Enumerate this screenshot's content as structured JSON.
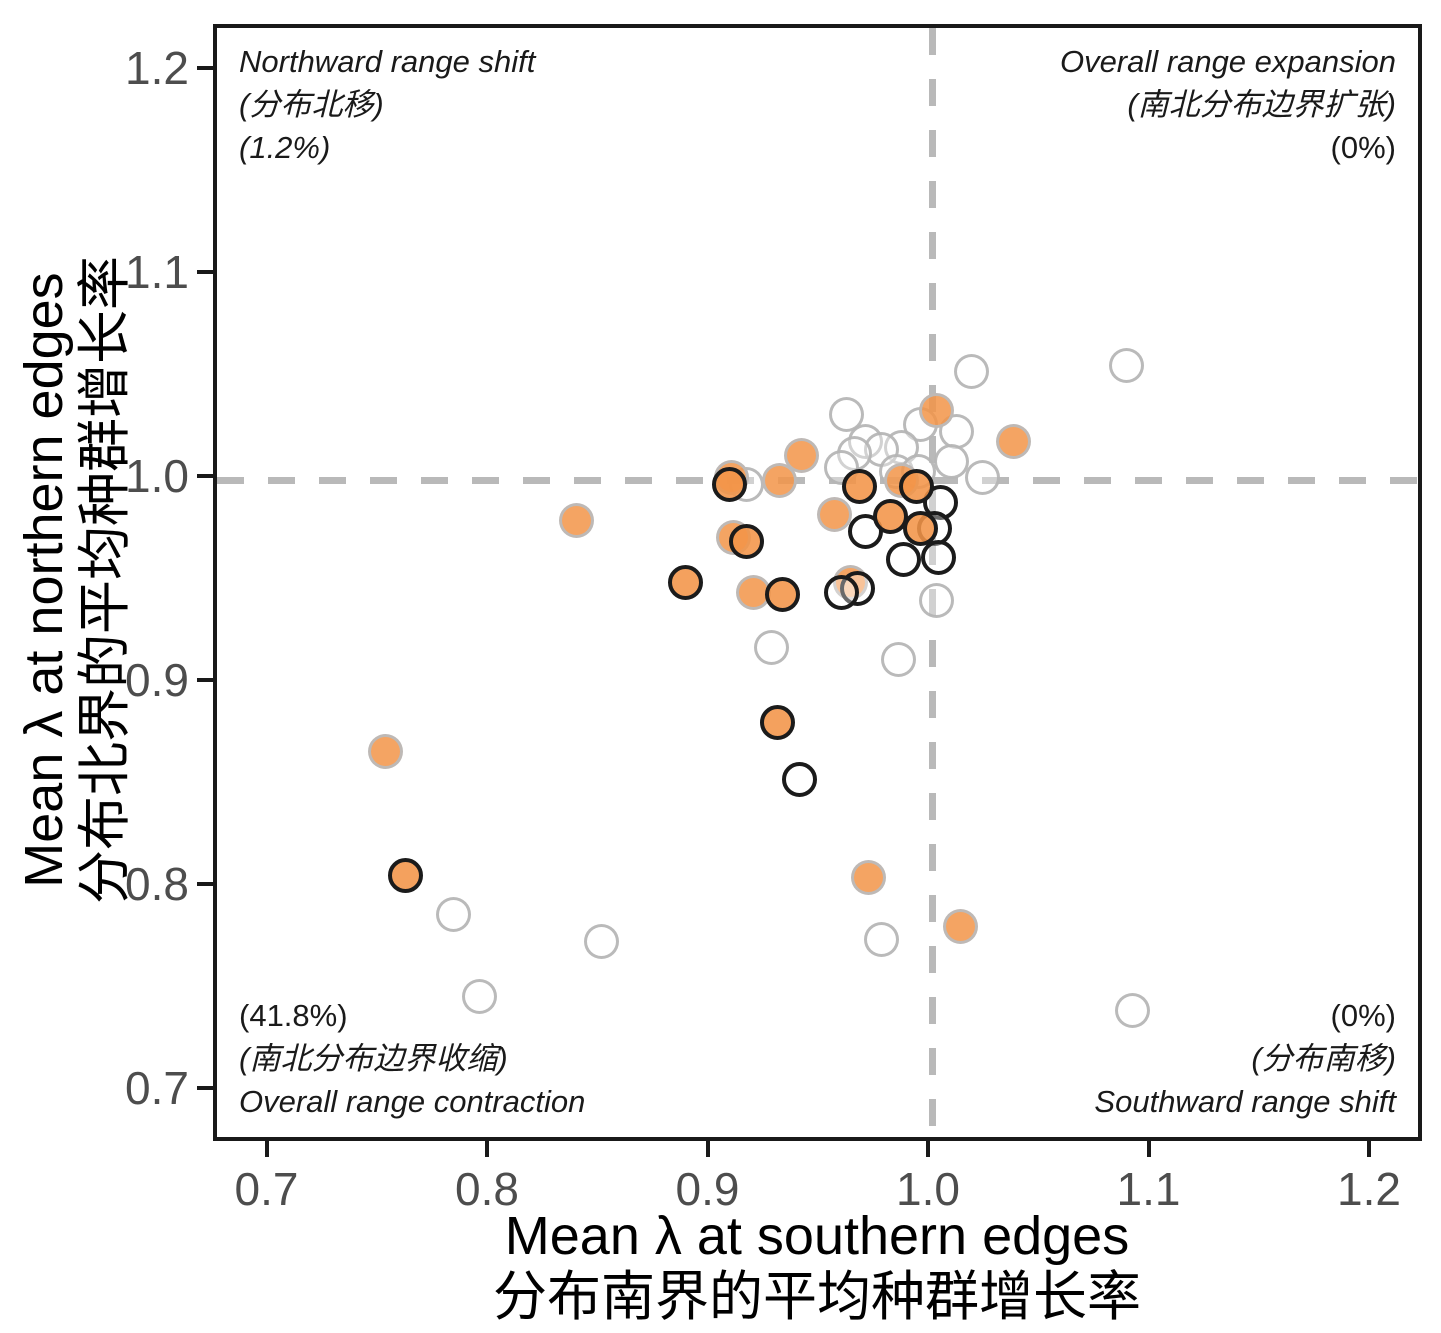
{
  "figure": {
    "x_axis": {
      "title_en": "Mean λ at southern edges",
      "title_zh": "分布南界的平均种群增长率",
      "ticks": [
        "0.7",
        "0.8",
        "0.9",
        "1.0",
        "1.1",
        "1.2"
      ]
    },
    "y_axis": {
      "title_en": "Mean λ at northern edges",
      "title_zh": "分布北界的平均种群增长率",
      "ticks": [
        "0.7",
        "0.8",
        "0.9",
        "1.0",
        "1.1",
        "1.2"
      ]
    },
    "quadrants": {
      "top_left": {
        "lines": [
          {
            "text": "Northward range shift",
            "italic": true
          },
          {
            "text": "(分布北移)",
            "italic": true
          },
          {
            "text": "(1.2%)",
            "italic": true
          }
        ]
      },
      "top_right": {
        "lines": [
          {
            "text": "Overall range expansion",
            "italic": true
          },
          {
            "text": "(南北分布边界扩张)",
            "italic": true
          },
          {
            "text": "(0%)",
            "italic": false
          }
        ]
      },
      "bottom_left": {
        "lines": [
          {
            "text": "(41.8%)",
            "italic": false
          },
          {
            "text": "(南北分布边界收缩)",
            "italic": true
          },
          {
            "text": "Overall range contraction",
            "italic": true
          }
        ]
      },
      "bottom_right": {
        "lines": [
          {
            "text": "(0%)",
            "italic": false
          },
          {
            "text": "(分布南移)",
            "italic": true
          },
          {
            "text": "Southward range shift",
            "italic": true
          }
        ]
      }
    },
    "colors": {
      "orange_fill": "#F29448",
      "gray_edge": "#B8B8B8",
      "black_edge": "#1B1B1B",
      "dashed_reference": "#B9B9B9",
      "tick_text": "#4D4D4D",
      "panel_border": "#191919"
    }
  },
  "chart_data": {
    "type": "scatter",
    "title": "",
    "xlabel": "Mean λ at southern edges (分布南界的平均种群增长率)",
    "ylabel": "Mean λ at northern edges (分布北界的平均种群增长率)",
    "xlim": [
      0.676,
      1.224
    ],
    "ylim": [
      0.674,
      1.222
    ],
    "x_ticks": [
      0.7,
      0.8,
      0.9,
      1.0,
      1.1,
      1.2
    ],
    "y_ticks": [
      0.7,
      0.8,
      0.9,
      1.0,
      1.1,
      1.2
    ],
    "grid": false,
    "legend": "none",
    "reference_lines": {
      "vertical_x": 1.0,
      "horizontal_y": 1.0,
      "style": "dashed gray"
    },
    "quadrant_percentages": {
      "northward_range_shift": 1.2,
      "overall_range_expansion": 0,
      "overall_range_contraction": 41.8,
      "southward_range_shift": 0
    },
    "series": [
      {
        "name": "white_gray_edge",
        "marker": "open circle, light gray edge",
        "points": [
          [
            1.018,
            1.053
          ],
          [
            1.088,
            1.056
          ],
          [
            0.961,
            1.032
          ],
          [
            0.995,
            1.027
          ],
          [
            1.011,
            1.024
          ],
          [
            0.97,
            1.019
          ],
          [
            0.986,
            1.016
          ],
          [
            0.977,
            1.015
          ],
          [
            0.965,
            1.013
          ],
          [
            1.009,
            1.009
          ],
          [
            0.959,
            1.006
          ],
          [
            0.984,
            1.004
          ],
          [
            0.994,
            1.004
          ],
          [
            1.023,
            1.001
          ],
          [
            0.916,
            0.998
          ],
          [
            1.002,
            0.941
          ],
          [
            0.985,
            0.912
          ],
          [
            0.927,
            0.918
          ],
          [
            0.783,
            0.787
          ],
          [
            0.85,
            0.774
          ],
          [
            0.795,
            0.747
          ],
          [
            0.977,
            0.775
          ],
          [
            1.091,
            0.74
          ]
        ]
      },
      {
        "name": "orange_gray_edge",
        "marker": "orange filled circle, light gray edge",
        "points": [
          [
            1.002,
            1.034
          ],
          [
            1.037,
            1.019
          ],
          [
            0.941,
            1.012
          ],
          [
            0.909,
            1.001
          ],
          [
            0.931,
            1.0
          ],
          [
            0.986,
            1.0
          ],
          [
            0.956,
            0.983
          ],
          [
            0.839,
            0.98
          ],
          [
            0.91,
            0.972
          ],
          [
            0.963,
            0.95
          ],
          [
            0.919,
            0.945
          ],
          [
            0.752,
            0.867
          ],
          [
            0.971,
            0.805
          ],
          [
            1.013,
            0.781
          ]
        ]
      },
      {
        "name": "white_black_edge",
        "marker": "open circle, black edge",
        "points": [
          [
            1.004,
            0.989
          ],
          [
            1.001,
            0.976
          ],
          [
            0.97,
            0.975
          ],
          [
            0.987,
            0.961
          ],
          [
            1.003,
            0.962
          ],
          [
            0.966,
            0.947
          ],
          [
            0.959,
            0.945
          ],
          [
            0.94,
            0.853
          ]
        ]
      },
      {
        "name": "orange_black_edge",
        "marker": "orange filled circle, black edge",
        "points": [
          [
            0.908,
            0.998
          ],
          [
            0.967,
            0.997
          ],
          [
            0.993,
            0.997
          ],
          [
            0.981,
            0.982
          ],
          [
            0.995,
            0.976
          ],
          [
            0.916,
            0.97
          ],
          [
            0.888,
            0.95
          ],
          [
            0.932,
            0.944
          ],
          [
            0.93,
            0.881
          ],
          [
            0.761,
            0.806
          ]
        ]
      }
    ]
  }
}
